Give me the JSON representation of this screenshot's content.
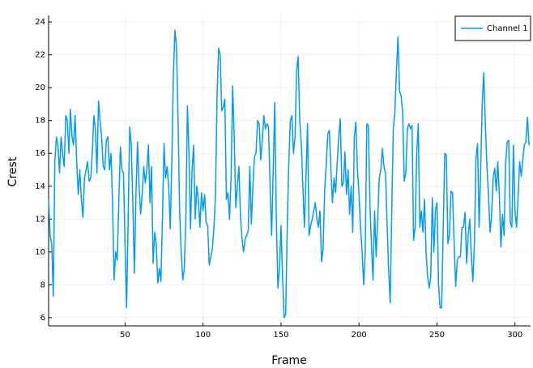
{
  "chart_data": {
    "type": "line",
    "xlabel": "Frame",
    "ylabel": "Crest",
    "x": [
      1,
      2,
      3,
      4,
      5,
      6,
      7,
      8,
      9,
      10,
      11,
      12,
      13,
      14,
      15,
      16,
      17,
      18,
      19,
      20,
      21,
      22,
      23,
      24,
      25,
      26,
      27,
      28,
      29,
      30,
      31,
      32,
      33,
      34,
      35,
      36,
      37,
      38,
      39,
      40,
      41,
      42,
      43,
      44,
      45,
      46,
      47,
      48,
      49,
      50,
      51,
      52,
      53,
      54,
      55,
      56,
      57,
      58,
      59,
      60,
      61,
      62,
      63,
      64,
      65,
      66,
      67,
      68,
      69,
      70,
      71,
      72,
      73,
      74,
      75,
      76,
      77,
      78,
      79,
      80,
      81,
      82,
      83,
      84,
      85,
      86,
      87,
      88,
      89,
      90,
      91,
      92,
      93,
      94,
      95,
      96,
      97,
      98,
      99,
      100,
      101,
      102,
      103,
      104,
      105,
      106,
      107,
      108,
      109,
      110,
      111,
      112,
      113,
      114,
      115,
      116,
      117,
      118,
      119,
      120,
      121,
      122,
      123,
      124,
      125,
      126,
      127,
      128,
      129,
      130,
      131,
      132,
      133,
      134,
      135,
      136,
      137,
      138,
      139,
      140,
      141,
      142,
      143,
      144,
      145,
      146,
      147,
      148,
      149,
      150,
      151,
      152,
      153,
      154,
      155,
      156,
      157,
      158,
      159,
      160,
      161,
      162,
      163,
      164,
      165,
      166,
      167,
      168,
      169,
      170,
      171,
      172,
      173,
      174,
      175,
      176,
      177,
      178,
      179,
      180,
      181,
      182,
      183,
      184,
      185,
      186,
      187,
      188,
      189,
      190,
      191,
      192,
      193,
      194,
      195,
      196,
      197,
      198,
      199,
      200,
      201,
      202,
      203,
      204,
      205,
      206,
      207,
      208,
      209,
      210,
      211,
      212,
      213,
      214,
      215,
      216,
      217,
      218,
      219,
      220,
      221,
      222,
      223,
      224,
      225,
      226,
      227,
      228,
      229,
      230,
      231,
      232,
      233,
      234,
      235,
      236,
      237,
      238,
      239,
      240,
      241,
      242,
      243,
      244,
      245,
      246,
      247,
      248,
      249,
      250,
      251,
      252,
      253,
      254,
      255,
      256,
      257,
      258,
      259,
      260,
      261,
      262,
      263,
      264,
      265,
      266,
      267,
      268,
      269,
      270,
      271,
      272,
      273,
      274,
      275,
      276,
      277,
      278,
      279,
      280,
      281,
      282,
      283,
      284,
      285,
      286,
      287,
      288,
      289,
      290,
      291,
      292,
      293,
      294,
      295,
      296,
      297,
      298,
      299,
      300,
      301,
      302,
      303,
      304,
      305,
      306,
      307,
      308,
      309
    ],
    "series": [
      {
        "name": "Channel 1",
        "color": "#009af9",
        "values": [
          13.2,
          11,
          10.5,
          7.3,
          15.5,
          17,
          16.5,
          14.8,
          17,
          16,
          15.2,
          18.3,
          18,
          16,
          18.7,
          17,
          16.5,
          18.3,
          15.5,
          13.5,
          15,
          13.2,
          12.1,
          14.5,
          15,
          15.5,
          14.3,
          14.5,
          16,
          18.3,
          17.5,
          14.8,
          19.2,
          18,
          17,
          15.2,
          15,
          16.8,
          17,
          15,
          16,
          13,
          8.3,
          10,
          9.5,
          13,
          16.4,
          15,
          14.8,
          10.5,
          6.6,
          12,
          17.6,
          16.5,
          13,
          8.7,
          13.5,
          16.7,
          14,
          12.3,
          13.5,
          15.2,
          14.2,
          15,
          16.5,
          13,
          15.2,
          9.3,
          11.2,
          10.5,
          8.1,
          9,
          8.2,
          12,
          16.6,
          14.5,
          15.2,
          14,
          11.4,
          15.5,
          20.8,
          23.5,
          22.5,
          18,
          12.5,
          10,
          8.3,
          9,
          12,
          18.9,
          16,
          11.4,
          15,
          16.5,
          12,
          14,
          13.2,
          11.5,
          13.6,
          12.5,
          13.5,
          11.8,
          11.6,
          9.2,
          9.7,
          10.2,
          11.5,
          13.5,
          19.5,
          22.4,
          22,
          18.6,
          18.8,
          19.3,
          13.2,
          13.6,
          12,
          14.6,
          20.1,
          17,
          12.7,
          14,
          15.2,
          12.2,
          10.8,
          10,
          10.8,
          11,
          11.3,
          15.2,
          11.7,
          14,
          15.8,
          16,
          18,
          17.8,
          15.6,
          16.8,
          18.3,
          17.5,
          17.8,
          17.6,
          14,
          11,
          15,
          19.1,
          12,
          7.8,
          9,
          11.6,
          8.5,
          6,
          6.2,
          11.5,
          15.5,
          18,
          18.3,
          16,
          17,
          21,
          21.9,
          18,
          16.6,
          14,
          11.5,
          14.5,
          17.8,
          11,
          11.6,
          12,
          12.5,
          13,
          12,
          11.5,
          12.5,
          9.4,
          10.2,
          13.8,
          15.3,
          17.2,
          17.4,
          15,
          13,
          14.5,
          13.6,
          15.4,
          17,
          18.1,
          14,
          14.2,
          16.1,
          13.5,
          15,
          12.3,
          14,
          11.2,
          17,
          17.9,
          15,
          13.5,
          11.5,
          10,
          8,
          10,
          17.8,
          17.7,
          13,
          10.4,
          8.3,
          12.5,
          9.7,
          12,
          14.5,
          15,
          16.3,
          15.2,
          14.8,
          11.8,
          8.9,
          6.9,
          12.5,
          17.5,
          18.5,
          21,
          23.1,
          19.8,
          19.5,
          18.5,
          14.3,
          14.8,
          17.5,
          17.8,
          17.5,
          17.7,
          10.7,
          11.5,
          16,
          17.8,
          11.5,
          12.5,
          11.2,
          13.2,
          10,
          8.5,
          7.8,
          8.5,
          13.3,
          10,
          12.5,
          13,
          8,
          6.6,
          6.6,
          11.5,
          16,
          15.9,
          10.5,
          11,
          13.7,
          13.6,
          10.5,
          7.9,
          9.5,
          9.7,
          9.7,
          11.5,
          11.5,
          12.4,
          9.3,
          11,
          12,
          9.8,
          8.2,
          10.5,
          15.7,
          16.6,
          11.5,
          15,
          19,
          20.9,
          17.8,
          15.3,
          13.5,
          11.2,
          12.2,
          14.5,
          15.1,
          13.7,
          15.5,
          13.4,
          10.3,
          12.3,
          11,
          15.4,
          16.7,
          16.8,
          11.8,
          11.5,
          16.5,
          12.5,
          11.5,
          13.3,
          15.5,
          14.6,
          15.6,
          16.5,
          16.7,
          18.2,
          16.5
        ]
      }
    ],
    "xlim": [
      1,
      310
    ],
    "ylim": [
      5.5,
      24.4
    ],
    "xticks": [
      50,
      100,
      150,
      200,
      250,
      300
    ],
    "yticks": [
      6,
      8,
      10,
      12,
      14,
      16,
      18,
      20,
      22,
      24
    ],
    "grid": true,
    "legend": "top-right"
  }
}
